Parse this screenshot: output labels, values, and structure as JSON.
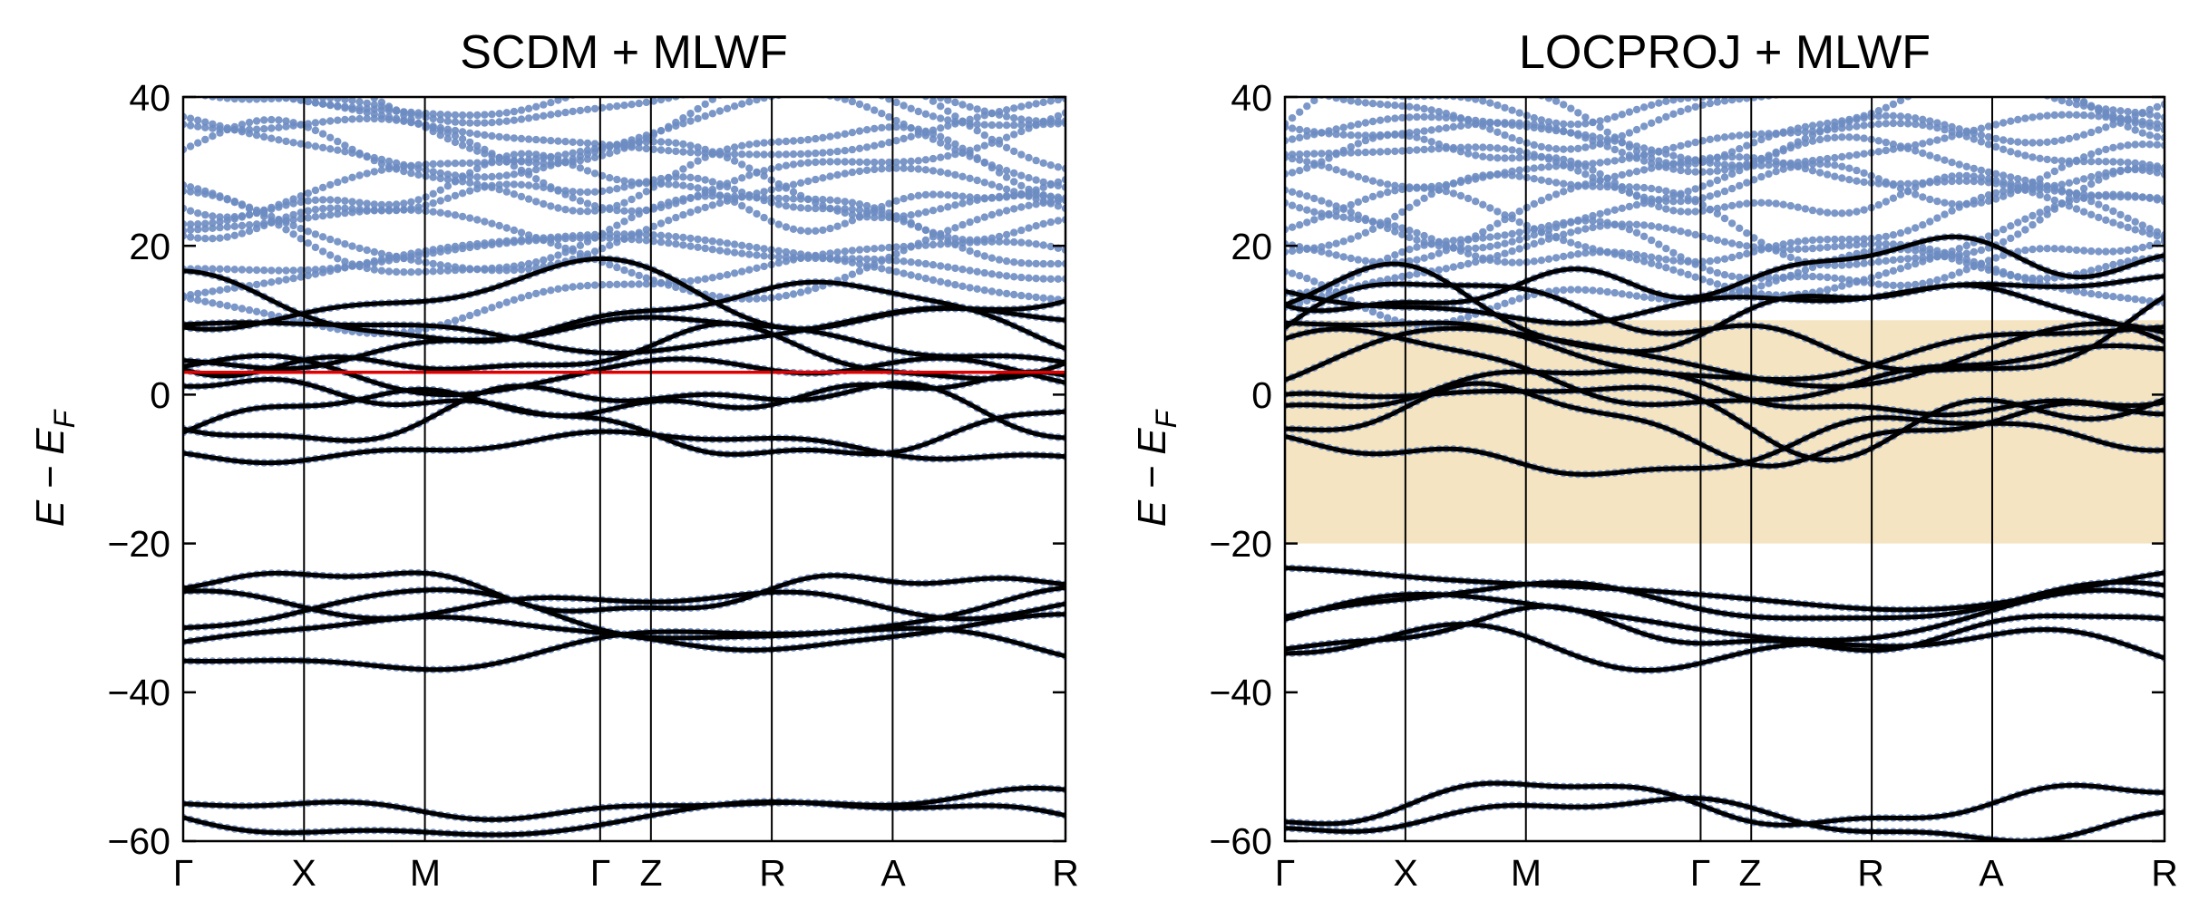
{
  "chart_data": [
    {
      "type": "line",
      "title": "SCDM + MLWF",
      "ylabel": {
        "main": "E − E",
        "subscript": "F"
      },
      "ylim": [
        -60,
        40
      ],
      "yticks": [
        "−60",
        "−40",
        "−20",
        "0",
        "20",
        "40"
      ],
      "yticks_values": [
        -60,
        -40,
        -20,
        0,
        20,
        40
      ],
      "xticks": [
        "Γ",
        "X",
        "M",
        "Γ",
        "Z",
        "R",
        "A",
        "R"
      ],
      "xticks_positions": [
        0,
        1,
        2,
        3.45,
        3.87,
        4.87,
        5.87,
        7.3
      ],
      "grid": "vertical lines at high-symmetry points",
      "series": [],
      "markers": {
        "dft_bands": {
          "color": "#6d8cc2",
          "style": "dots"
        },
        "wannier_bands": {
          "color": "#000000",
          "style": "line"
        },
        "fermi_line": {
          "y": 3,
          "color": "#e00000"
        }
      },
      "band_groups": {
        "upper": {
          "centers": [
            -7,
            -4,
            -2,
            0,
            3,
            5,
            7,
            9,
            11,
            13
          ],
          "spread": 3.2
        },
        "middle": {
          "centers": [
            -34,
            -32,
            -30,
            -28,
            -26
          ],
          "spread": 2.4
        },
        "lower": {
          "centers": [
            -57,
            -55
          ],
          "spread": 1.8
        },
        "dft_high": {
          "from": 14,
          "to": 42,
          "count": 16
        }
      }
    },
    {
      "type": "line",
      "title": "LOCPROJ + MLWF",
      "ylabel": {
        "main": "E − E",
        "subscript": "F"
      },
      "ylim": [
        -60,
        40
      ],
      "yticks": [
        "−60",
        "−40",
        "−20",
        "0",
        "20",
        "40"
      ],
      "yticks_values": [
        -60,
        -40,
        -20,
        0,
        20,
        40
      ],
      "xticks": [
        "Γ",
        "X",
        "M",
        "Γ",
        "Z",
        "R",
        "A",
        "R"
      ],
      "xticks_positions": [
        0,
        1,
        2,
        3.45,
        3.87,
        4.87,
        5.87,
        7.3
      ],
      "grid": "vertical lines at high-symmetry points",
      "series": [],
      "shaded_window": {
        "y0": -20,
        "y1": 10,
        "color": "#f2dfb6"
      },
      "markers": {
        "dft_bands": {
          "color": "#6d8cc2",
          "style": "dots"
        },
        "wannier_bands": {
          "color": "#000000",
          "style": "line"
        }
      },
      "band_groups": {
        "upper": {
          "centers": [
            -7,
            -4,
            -2,
            0,
            3,
            5,
            7,
            9,
            11,
            13,
            16
          ],
          "spread": 4.0
        },
        "middle": {
          "centers": [
            -34,
            -32,
            -30,
            -28,
            -26
          ],
          "spread": 2.6
        },
        "lower": {
          "centers": [
            -57,
            -55
          ],
          "spread": 2.4
        },
        "dft_high": {
          "from": 14,
          "to": 42,
          "count": 16
        }
      }
    }
  ]
}
